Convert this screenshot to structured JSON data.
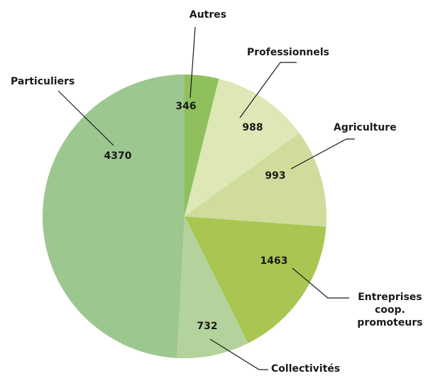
{
  "chart_data": {
    "type": "pie",
    "categories": [
      "Autres",
      "Professionnels",
      "Agriculture",
      "Entreprises coop. promoteurs",
      "Collectivités",
      "Particuliers"
    ],
    "values": [
      346,
      988,
      993,
      1463,
      732,
      4370
    ],
    "colors": [
      "#8fc05c",
      "#dde8b6",
      "#cfdc9c",
      "#a9c653",
      "#b4d39c",
      "#9cc78f"
    ]
  }
}
